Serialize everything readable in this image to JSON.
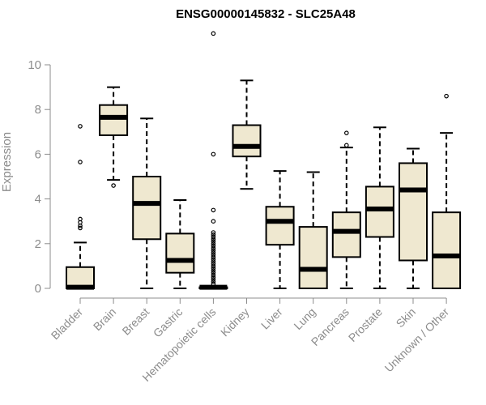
{
  "chart_data": {
    "type": "box",
    "title": "ENSG00000145832 - SLC25A48",
    "ylabel": "Expression",
    "xlabel": "",
    "ylim": [
      0,
      10.5
    ],
    "yticks": [
      0,
      2,
      4,
      6,
      8,
      10
    ],
    "box_fill": "#efe8d0",
    "box_stroke": "#000000",
    "axis_color": "#8c8c8c",
    "categories": [
      "Bladder",
      "Brain",
      "Breast",
      "Gastric",
      "Hematopoietic cells",
      "Kidney",
      "Liver",
      "Lung",
      "Pancreas",
      "Prostate",
      "Skin",
      "Unknown / Other"
    ],
    "boxes": [
      {
        "whisker_low": 0,
        "q1": 0,
        "median": 0.05,
        "q3": 0.95,
        "whisker_high": 2.05,
        "outliers": [
          7.25,
          5.65,
          3.1,
          2.95,
          2.8,
          2.7
        ]
      },
      {
        "whisker_low": 4.85,
        "q1": 6.85,
        "median": 7.65,
        "q3": 8.2,
        "whisker_high": 9.0,
        "outliers": [
          4.6
        ]
      },
      {
        "whisker_low": 0,
        "q1": 2.2,
        "median": 3.8,
        "q3": 5.0,
        "whisker_high": 7.6,
        "outliers": []
      },
      {
        "whisker_low": 0,
        "q1": 0.7,
        "median": 1.25,
        "q3": 2.45,
        "whisker_high": 3.95,
        "outliers": []
      },
      {
        "whisker_low": 0,
        "q1": 0,
        "median": 0.05,
        "q3": 0.05,
        "whisker_high": 0.1,
        "outliers": [
          11.4,
          6.0,
          3.5,
          3.0,
          2.5,
          2.4,
          2.3,
          2.2,
          2.1,
          2.0,
          1.9,
          1.8,
          1.7,
          1.6,
          1.5,
          1.4,
          1.3,
          1.2,
          1.1,
          1.0,
          0.9,
          0.8,
          0.7,
          0.6,
          0.5,
          0.4,
          0.3,
          0.2
        ]
      },
      {
        "whisker_low": 4.45,
        "q1": 5.9,
        "median": 6.35,
        "q3": 7.3,
        "whisker_high": 9.3,
        "outliers": []
      },
      {
        "whisker_low": 0,
        "q1": 1.95,
        "median": 3.0,
        "q3": 3.65,
        "whisker_high": 5.25,
        "outliers": []
      },
      {
        "whisker_low": 0,
        "q1": 0,
        "median": 0.85,
        "q3": 2.75,
        "whisker_high": 5.2,
        "outliers": []
      },
      {
        "whisker_low": 0,
        "q1": 1.4,
        "median": 2.55,
        "q3": 3.4,
        "whisker_high": 6.3,
        "outliers": [
          6.95,
          6.4
        ]
      },
      {
        "whisker_low": 0,
        "q1": 2.3,
        "median": 3.55,
        "q3": 4.55,
        "whisker_high": 7.2,
        "outliers": []
      },
      {
        "whisker_low": 0,
        "q1": 1.25,
        "median": 4.4,
        "q3": 5.6,
        "whisker_high": 6.25,
        "outliers": []
      },
      {
        "whisker_low": 0,
        "q1": 0,
        "median": 1.45,
        "q3": 3.4,
        "whisker_high": 6.95,
        "outliers": [
          8.6
        ]
      }
    ]
  }
}
